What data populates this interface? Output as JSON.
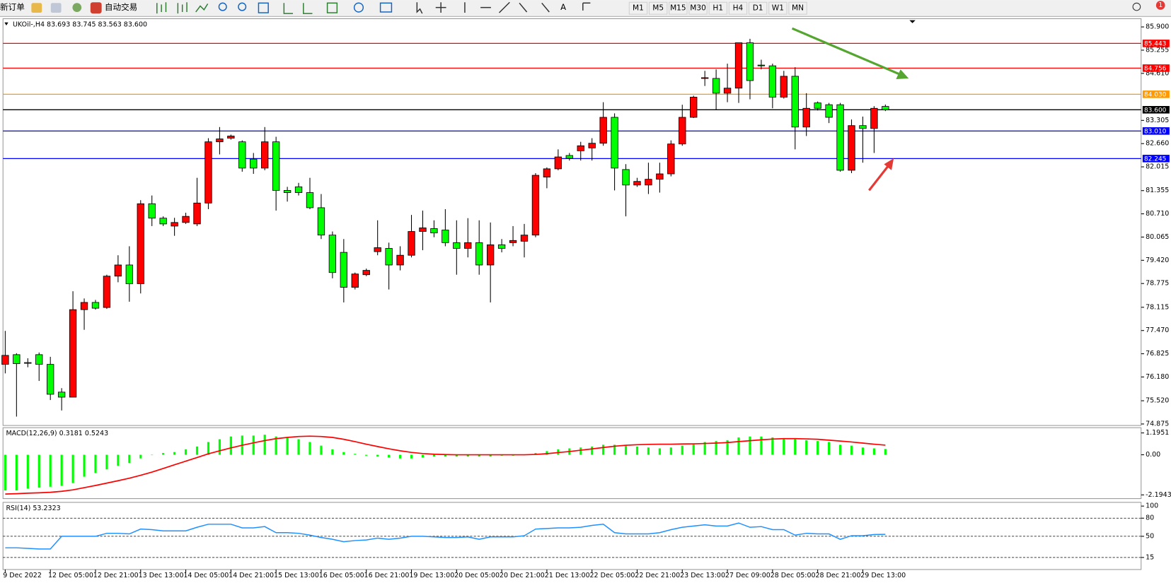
{
  "toolbar": {
    "new_order": "新订单",
    "auto_trading": "自动交易",
    "timeframes": [
      "M1",
      "M5",
      "M15",
      "M30",
      "H1",
      "H4",
      "D1",
      "W1",
      "MN"
    ],
    "alerts": "1"
  },
  "chart_data": [
    {
      "type": "candlestick",
      "title": "UKOil-,H4  83.693 83.745 83.563 83.600",
      "categories": [
        "9 Dec 2022",
        null,
        null,
        null,
        "12 Dec 05:00",
        null,
        null,
        null,
        "12 Dec 21:00",
        null,
        null,
        null,
        "13 Dec 13:00",
        null,
        null,
        null,
        "14 Dec 05:00",
        null,
        null,
        null,
        "14 Dec 21:00",
        null,
        null,
        null,
        "15 Dec 13:00",
        null,
        null,
        null,
        "16 Dec 05:00",
        null,
        null,
        null,
        "16 Dec 21:00",
        null,
        null,
        null,
        "19 Dec 13:00",
        null,
        null,
        null,
        "20 Dec 05:00",
        null,
        null,
        null,
        "20 Dec 21:00",
        null,
        null,
        null,
        "21 Dec 13:00",
        null,
        null,
        null,
        "22 Dec 05:00",
        null,
        null,
        null,
        "22 Dec 21:00",
        null,
        null,
        null,
        "23 Dec 13:00",
        null,
        null,
        null,
        "27 Dec 09:00",
        null,
        null,
        null,
        "28 Dec 05:00",
        null,
        null,
        null,
        "28 Dec 21:00",
        null,
        null,
        null,
        "29 Dec 13:00",
        null,
        null
      ],
      "open": [
        76.53,
        76.8,
        76.58,
        76.8,
        76.53,
        75.76,
        75.62,
        78.05,
        78.25,
        78.11,
        78.98,
        79.29,
        78.77,
        80.99,
        80.59,
        80.37,
        80.47,
        80.43,
        81.01,
        82.71,
        82.81,
        82.71,
        82.23,
        81.98,
        82.71,
        81.36,
        81.46,
        81.3,
        80.88,
        80.12,
        79.64,
        78.67,
        79.02,
        79.66,
        79.75,
        79.29,
        79.56,
        80.22,
        80.3,
        80.26,
        79.91,
        79.75,
        79.91,
        79.29,
        79.85,
        79.91,
        79.95,
        80.12,
        81.73,
        81.96,
        82.33,
        82.46,
        82.54,
        82.67,
        83.39,
        81.94,
        81.51,
        81.51,
        81.67,
        81.82,
        82.65,
        83.39,
        84.47,
        84.47,
        84.06,
        84.2,
        85.46,
        84.84,
        84.82,
        83.95,
        84.53,
        83.12,
        83.79,
        83.74,
        83.74,
        81.92,
        83.16,
        83.08,
        83.693
      ],
      "high": [
        77.46,
        76.84,
        76.7,
        76.86,
        76.74,
        75.87,
        78.56,
        78.36,
        78.32,
        79.02,
        79.56,
        79.81,
        81.09,
        81.22,
        80.64,
        80.6,
        80.74,
        81.71,
        82.81,
        83.12,
        82.91,
        82.75,
        82.4,
        83.12,
        82.85,
        81.46,
        81.57,
        81.71,
        81.26,
        80.22,
        80.01,
        79.08,
        79.19,
        80.53,
        79.91,
        79.81,
        80.68,
        80.8,
        80.53,
        80.84,
        80.53,
        80.59,
        80.53,
        80.47,
        80.01,
        80.37,
        80.43,
        81.84,
        82.0,
        82.5,
        82.4,
        82.71,
        82.81,
        83.81,
        83.5,
        82.09,
        81.71,
        82.13,
        82.13,
        82.75,
        83.74,
        83.99,
        84.68,
        84.72,
        84.88,
        85.46,
        85.57,
        84.99,
        84.88,
        84.68,
        84.78,
        84.06,
        83.83,
        83.79,
        83.79,
        83.33,
        83.41,
        83.7,
        83.745
      ],
      "low": [
        76.28,
        75.08,
        76.45,
        76.07,
        75.54,
        75.25,
        75.62,
        77.49,
        78.05,
        78.07,
        78.81,
        78.27,
        78.5,
        80.37,
        80.37,
        80.1,
        80.43,
        80.37,
        80.84,
        82.36,
        82.77,
        81.88,
        81.82,
        81.92,
        80.8,
        81.05,
        81.22,
        80.84,
        80.01,
        78.92,
        78.25,
        78.61,
        78.98,
        79.56,
        78.61,
        79.14,
        79.5,
        79.7,
        80.06,
        79.81,
        79.02,
        79.5,
        79.02,
        78.25,
        79.64,
        79.81,
        79.5,
        80.06,
        81.42,
        81.92,
        82.19,
        82.19,
        82.19,
        82.6,
        81.36,
        80.64,
        81.46,
        81.26,
        81.3,
        81.75,
        82.6,
        83.37,
        84.26,
        83.6,
        83.81,
        83.79,
        83.89,
        84.72,
        83.64,
        83.91,
        82.5,
        82.87,
        83.58,
        83.23,
        81.88,
        81.84,
        82.13,
        82.4,
        83.563
      ],
      "close": [
        76.78,
        76.55,
        76.57,
        76.53,
        75.7,
        75.62,
        78.05,
        78.25,
        78.09,
        78.98,
        79.29,
        78.77,
        80.99,
        80.59,
        80.43,
        80.47,
        80.64,
        81.01,
        82.71,
        82.79,
        82.87,
        81.98,
        81.98,
        82.71,
        81.36,
        81.3,
        81.3,
        80.88,
        80.12,
        79.08,
        78.67,
        79.04,
        79.14,
        79.77,
        79.29,
        79.56,
        80.22,
        80.32,
        80.18,
        79.91,
        79.75,
        79.91,
        79.29,
        79.85,
        79.75,
        79.97,
        80.12,
        81.78,
        81.96,
        82.29,
        82.25,
        82.6,
        82.67,
        83.39,
        81.98,
        81.51,
        81.61,
        81.67,
        81.82,
        82.65,
        83.39,
        83.95,
        84.49,
        84.06,
        84.2,
        85.46,
        84.41,
        84.82,
        83.95,
        84.53,
        83.12,
        83.64,
        83.64,
        83.39,
        81.92,
        83.16,
        83.08,
        83.64,
        83.6
      ],
      "up_color": "#ff0000",
      "down_color": "#00ff00",
      "ylim": [
        74.875,
        85.9
      ],
      "yticks": [
        {
          "value": 85.9,
          "label": "85.900"
        },
        85.255,
        {
          "value": 84.61,
          "label": "84.610"
        },
        83.305,
        {
          "value": 82.66,
          "label": "82.660"
        },
        82.015,
        81.355,
        {
          "value": 80.71,
          "label": "80.710"
        },
        80.065,
        {
          "value": 79.42,
          "label": "79.420"
        },
        78.775,
        78.115,
        {
          "value": 77.47,
          "label": "77.470"
        },
        76.825,
        {
          "value": 76.18,
          "label": "76.180"
        },
        {
          "value": 75.52,
          "label": "75.520"
        },
        74.875
      ],
      "levels": [
        {
          "value": 85.443,
          "color": "#ff0000"
        },
        {
          "value": 84.756,
          "color": "#ff0000"
        },
        {
          "value": 84.03,
          "label": "84.030",
          "color": "#ff9900"
        },
        {
          "value": 83.6,
          "label": "83.600",
          "color": "#000000"
        },
        {
          "value": 83.01,
          "label": "83.010",
          "color": "#0000ff"
        },
        {
          "value": 82.245,
          "color": "#0000ff"
        }
      ]
    },
    {
      "type": "macd",
      "title": "MACD(12,26,9) 0.3181 0.5243",
      "histogram": [
        -1.95,
        -1.95,
        -1.85,
        -1.8,
        -1.75,
        -1.7,
        -1.55,
        -1.2,
        -1.0,
        -0.8,
        -0.6,
        -0.45,
        -0.2,
        0.0,
        0.1,
        0.15,
        0.3,
        0.45,
        0.7,
        0.85,
        1.0,
        1.05,
        1.05,
        1.1,
        1.0,
        0.95,
        0.85,
        0.7,
        0.5,
        0.3,
        0.15,
        0.05,
        -0.05,
        -0.1,
        -0.15,
        -0.2,
        -0.2,
        -0.15,
        -0.1,
        -0.1,
        -0.1,
        -0.1,
        -0.1,
        -0.1,
        -0.05,
        -0.05,
        0.0,
        0.1,
        0.2,
        0.3,
        0.35,
        0.4,
        0.45,
        0.55,
        0.55,
        0.5,
        0.45,
        0.4,
        0.35,
        0.4,
        0.5,
        0.6,
        0.7,
        0.75,
        0.8,
        0.95,
        1.0,
        1.0,
        0.95,
        0.9,
        0.85,
        0.8,
        0.75,
        0.7,
        0.55,
        0.5,
        0.4,
        0.35,
        0.3181
      ],
      "signal": [
        -2.15,
        -2.13,
        -2.1,
        -2.08,
        -2.05,
        -2.0,
        -1.92,
        -1.8,
        -1.68,
        -1.55,
        -1.42,
        -1.28,
        -1.12,
        -0.95,
        -0.75,
        -0.55,
        -0.35,
        -0.15,
        0.05,
        0.22,
        0.38,
        0.52,
        0.65,
        0.78,
        0.88,
        0.95,
        1.0,
        1.02,
        1.0,
        0.95,
        0.85,
        0.72,
        0.58,
        0.45,
        0.33,
        0.22,
        0.13,
        0.07,
        0.03,
        0.01,
        0,
        0,
        0,
        0,
        0,
        0,
        0,
        0.02,
        0.06,
        0.12,
        0.18,
        0.25,
        0.32,
        0.4,
        0.47,
        0.52,
        0.55,
        0.57,
        0.58,
        0.58,
        0.59,
        0.6,
        0.62,
        0.64,
        0.67,
        0.72,
        0.77,
        0.82,
        0.86,
        0.88,
        0.88,
        0.87,
        0.85,
        0.8,
        0.75,
        0.7,
        0.64,
        0.58,
        0.5243
      ],
      "histogram_color": "#00ff00",
      "signal_color": "#ff0000",
      "ylim": [
        -2.1943,
        1.1951
      ],
      "yticks": [
        1.1951,
        {
          "value": 0,
          "label": "0.00"
        },
        -2.1943
      ]
    },
    {
      "type": "rsi",
      "title": "RSI(14) 53.2323",
      "values": [
        31,
        31,
        30,
        29,
        29,
        50,
        50,
        50,
        50,
        55,
        55,
        54,
        62,
        61,
        59,
        59,
        59,
        65,
        70,
        70,
        70,
        64,
        64,
        66,
        56,
        56,
        55,
        52,
        48,
        45,
        41,
        43,
        44,
        47,
        45,
        47,
        50,
        50,
        49,
        48,
        48,
        49,
        45,
        49,
        49,
        49,
        51,
        62,
        63,
        64,
        64,
        65,
        68,
        70,
        56,
        54,
        54,
        54,
        56,
        61,
        65,
        67,
        69,
        67,
        67,
        72,
        65,
        66,
        61,
        61,
        52,
        55,
        54,
        54,
        45,
        51,
        51,
        53,
        53.2323
      ],
      "color": "#1e90ff",
      "ylim": [
        0,
        100
      ],
      "yticks": [
        100,
        80,
        50,
        15
      ],
      "levels": [
        80,
        50,
        15
      ]
    }
  ]
}
